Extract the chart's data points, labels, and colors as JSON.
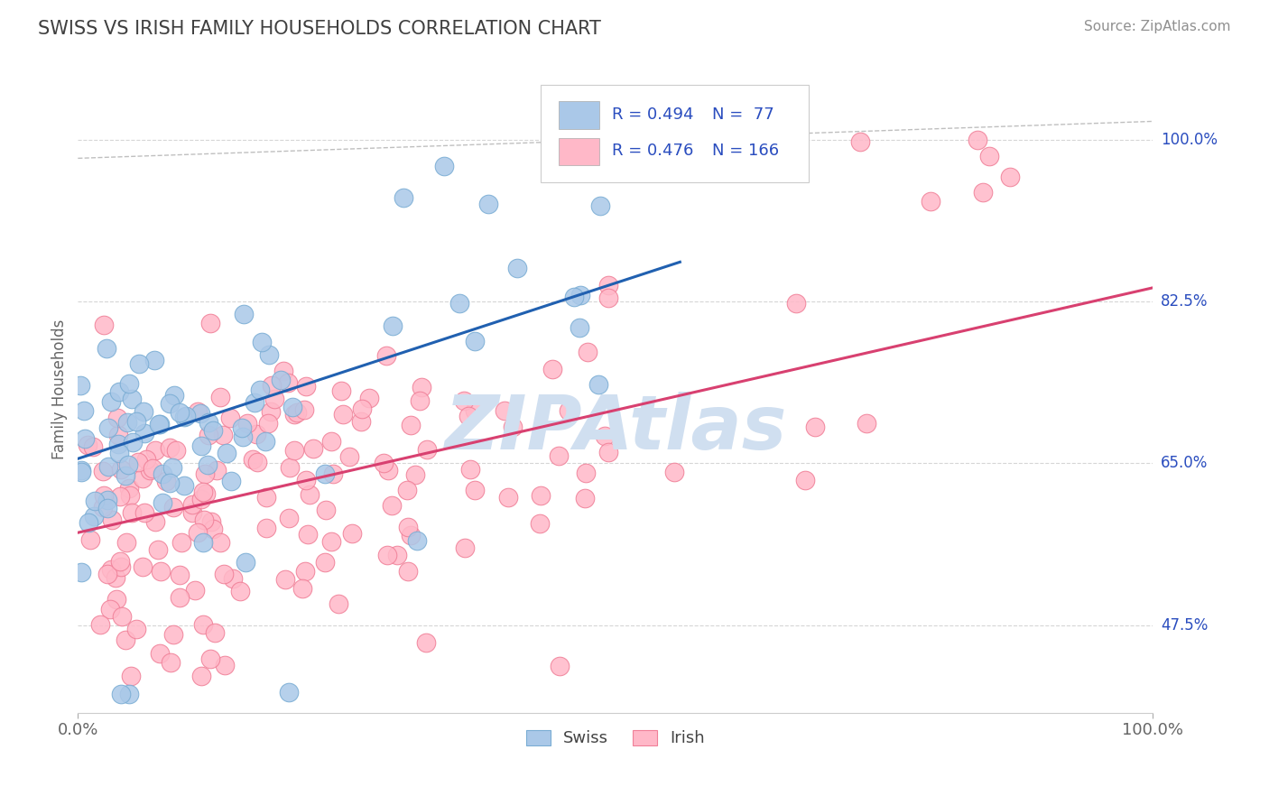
{
  "title": "SWISS VS IRISH FAMILY HOUSEHOLDS CORRELATION CHART",
  "source_text": "Source: ZipAtlas.com",
  "ylabel": "Family Households",
  "xlim": [
    0.0,
    1.0
  ],
  "ylim": [
    0.38,
    1.08
  ],
  "x_tick_labels": [
    "0.0%",
    "100.0%"
  ],
  "y_tick_labels": [
    "47.5%",
    "65.0%",
    "82.5%",
    "100.0%"
  ],
  "y_tick_values": [
    0.475,
    0.65,
    0.825,
    1.0
  ],
  "swiss_R": 0.494,
  "swiss_N": 77,
  "irish_R": 0.476,
  "irish_N": 166,
  "swiss_color": "#aac8e8",
  "swiss_edge_color": "#7aadd4",
  "irish_color": "#ffb8c8",
  "irish_edge_color": "#f08098",
  "swiss_line_color": "#2060b0",
  "irish_line_color": "#d84070",
  "dashed_line_color": "#b0b0b0",
  "background_color": "#ffffff",
  "watermark_text": "ZIPAtlas",
  "watermark_color": "#d0dff0",
  "legend_R_color": "#2a4dbf",
  "legend_N_color": "#202020",
  "title_color": "#404040",
  "source_color": "#909090",
  "swiss_line_intercept": 0.655,
  "swiss_line_slope": 0.38,
  "irish_line_intercept": 0.575,
  "irish_line_slope": 0.265,
  "dashed_line_intercept": 0.98,
  "dashed_line_slope": 0.04
}
